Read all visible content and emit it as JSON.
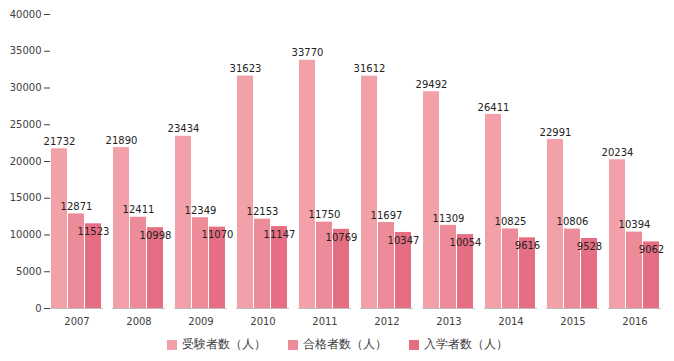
{
  "chart_data": {
    "type": "bar",
    "categories": [
      "2007",
      "2008",
      "2009",
      "2010",
      "2011",
      "2012",
      "2013",
      "2014",
      "2015",
      "2016"
    ],
    "series": [
      {
        "name": "受験者数（人）",
        "color": "#f2a1a9",
        "values": [
          21732,
          21890,
          23434,
          31623,
          33770,
          31612,
          29492,
          26411,
          22991,
          20234
        ]
      },
      {
        "name": "合格者数（人）",
        "color": "#ee8b99",
        "values": [
          12871,
          12411,
          12349,
          12153,
          11750,
          11697,
          11309,
          10825,
          10806,
          10394
        ]
      },
      {
        "name": "入学者数（人）",
        "color": "#e56e82",
        "values": [
          11523,
          10998,
          11070,
          11147,
          10769,
          10347,
          10054,
          9616,
          9528,
          9062
        ]
      }
    ],
    "ylim": [
      0,
      40000
    ],
    "yticks": [
      0,
      5000,
      10000,
      15000,
      20000,
      25000,
      30000,
      35000,
      40000
    ],
    "grid": false,
    "legend": "bottom",
    "data_labels": true
  }
}
